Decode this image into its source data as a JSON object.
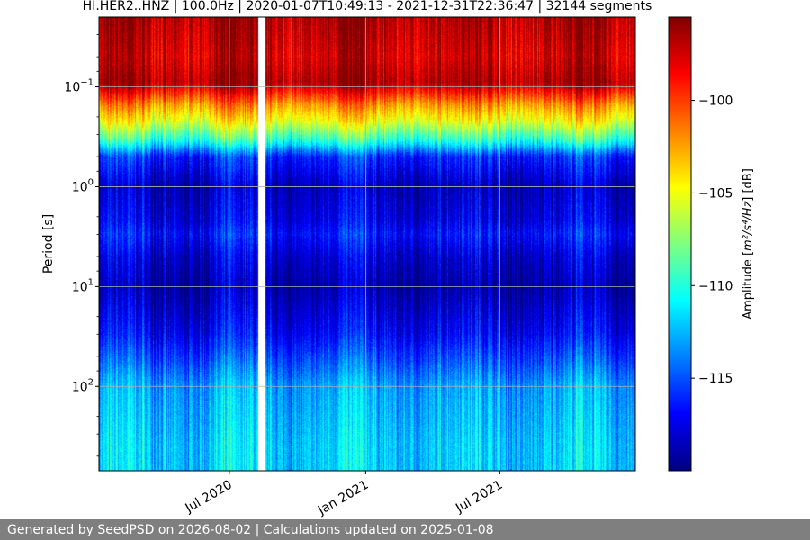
{
  "chart_data": {
    "type": "heatmap",
    "title": "HI.HER2..HNZ | 100.0Hz | 2020-01-07T10:49:13 - 2021-12-31T22:36:47 | 32144 segments",
    "ylabel": "Period [s]",
    "y_scale": "log",
    "y_inverted": true,
    "ylim": [
      0.02,
      700
    ],
    "y_ticks": [
      {
        "value": 0.1,
        "base": "10",
        "exp": "−1"
      },
      {
        "value": 1,
        "base": "10",
        "exp": "0"
      },
      {
        "value": 10,
        "base": "10",
        "exp": "1"
      },
      {
        "value": 100,
        "base": "10",
        "exp": "2"
      }
    ],
    "x_range": [
      "2020-01-07",
      "2021-12-31"
    ],
    "x_ticks": [
      {
        "date": "2020-07-01",
        "label": "Jul 2020"
      },
      {
        "date": "2021-01-01",
        "label": "Jan 2021"
      },
      {
        "date": "2021-07-01",
        "label": "Jul 2021"
      }
    ],
    "grid": true,
    "colormap": "jet",
    "colorbar": {
      "label_prefix": "Amplitude [",
      "label_units": "m²/s⁴/Hz",
      "label_suffix": "] [dB]",
      "vmin": -120,
      "vmax": -95.5,
      "ticks": [
        -100,
        -105,
        -110,
        -115
      ],
      "tick_labels": [
        "−100",
        "−105",
        "−110",
        "−115"
      ]
    },
    "profile": [
      {
        "period": 0.02,
        "db": -96.5
      },
      {
        "period": 0.05,
        "db": -97.5
      },
      {
        "period": 0.09,
        "db": -96.5
      },
      {
        "period": 0.15,
        "db": -102
      },
      {
        "period": 0.22,
        "db": -105
      },
      {
        "period": 0.35,
        "db": -110
      },
      {
        "period": 0.5,
        "db": -116
      },
      {
        "period": 1.0,
        "db": -118.5
      },
      {
        "period": 2.2,
        "db": -117.5
      },
      {
        "period": 3.0,
        "db": -116.5
      },
      {
        "period": 5.0,
        "db": -118
      },
      {
        "period": 10,
        "db": -119
      },
      {
        "period": 30,
        "db": -117
      },
      {
        "period": 100,
        "db": -113
      },
      {
        "period": 400,
        "db": -112
      },
      {
        "period": 700,
        "db": -112
      }
    ],
    "gaps": [
      {
        "start": "2020-08-09",
        "end": "2020-08-18"
      }
    ]
  },
  "footer": {
    "text": "Generated by SeedPSD on 2026-08-02 | Calculations updated on 2025-01-08"
  }
}
